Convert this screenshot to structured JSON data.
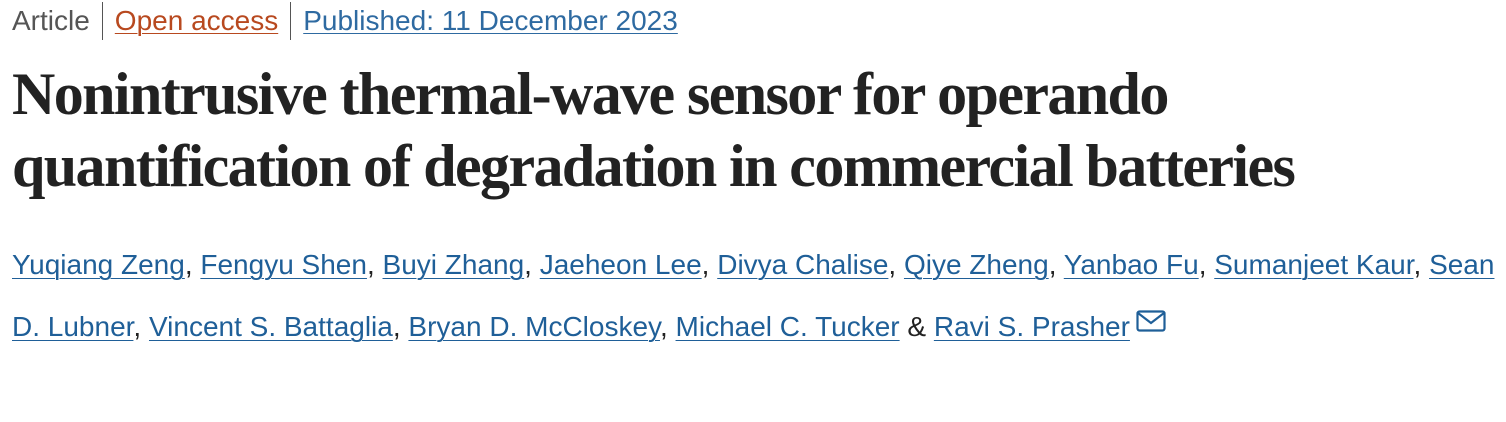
{
  "header": {
    "article_type": "Article",
    "access": "Open access",
    "published": "Published: 11 December 2023"
  },
  "title": "Nonintrusive thermal-wave sensor for operando quantification of degradation in commercial batteries",
  "authors": [
    {
      "name": "Yuqiang Zeng",
      "separator": ","
    },
    {
      "name": "Fengyu Shen",
      "separator": ","
    },
    {
      "name": "Buyi Zhang",
      "separator": ","
    },
    {
      "name": "Jaeheon Lee",
      "separator": ","
    },
    {
      "name": "Divya Chalise",
      "separator": ","
    },
    {
      "name": "Qiye Zheng",
      "separator": ","
    },
    {
      "name": "Yanbao Fu",
      "separator": ","
    },
    {
      "name": "Sumanjeet Kaur",
      "separator": ","
    },
    {
      "name": "Sean D. Lubner",
      "separator": ","
    },
    {
      "name": "Vincent S. Battaglia",
      "separator": ","
    },
    {
      "name": "Bryan D. McCloskey",
      "separator": ","
    },
    {
      "name": "Michael C. Tucker",
      "separator": "&"
    },
    {
      "name": "Ravi S. Prasher"
    }
  ]
}
